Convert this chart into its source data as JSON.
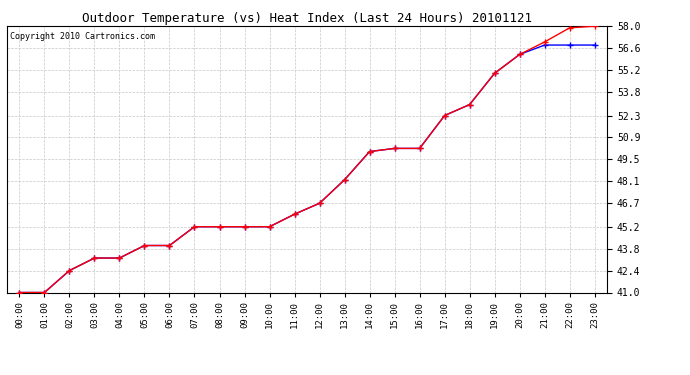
{
  "title": "Outdoor Temperature (vs) Heat Index (Last 24 Hours) 20101121",
  "copyright_text": "Copyright 2010 Cartronics.com",
  "xlabels": [
    "00:00",
    "01:00",
    "02:00",
    "03:00",
    "04:00",
    "05:00",
    "06:00",
    "07:00",
    "08:00",
    "09:00",
    "10:00",
    "11:00",
    "12:00",
    "13:00",
    "14:00",
    "15:00",
    "16:00",
    "17:00",
    "18:00",
    "19:00",
    "20:00",
    "21:00",
    "22:00",
    "23:00"
  ],
  "temp_data": [
    41.0,
    41.0,
    42.4,
    43.2,
    43.2,
    44.0,
    44.0,
    45.2,
    45.2,
    45.2,
    45.2,
    46.0,
    46.7,
    48.2,
    50.0,
    50.2,
    50.2,
    52.3,
    53.0,
    55.0,
    56.2,
    57.0,
    57.9,
    58.0
  ],
  "heat_data": [
    41.0,
    41.0,
    42.4,
    43.2,
    43.2,
    44.0,
    44.0,
    45.2,
    45.2,
    45.2,
    45.2,
    46.0,
    46.7,
    48.2,
    50.0,
    50.2,
    50.2,
    52.3,
    53.0,
    55.0,
    56.2,
    56.8,
    56.8,
    56.8
  ],
  "ylim": [
    41.0,
    58.0
  ],
  "yticks": [
    41.0,
    42.4,
    43.8,
    45.2,
    46.7,
    48.1,
    49.5,
    50.9,
    52.3,
    53.8,
    55.2,
    56.6,
    58.0
  ],
  "temp_color": "#ff0000",
  "heat_color": "#0000ff",
  "bg_color": "#ffffff",
  "grid_color": "#c8c8c8",
  "title_fontsize": 9,
  "copyright_fontsize": 6,
  "tick_fontsize": 6.5,
  "ytick_fontsize": 7
}
